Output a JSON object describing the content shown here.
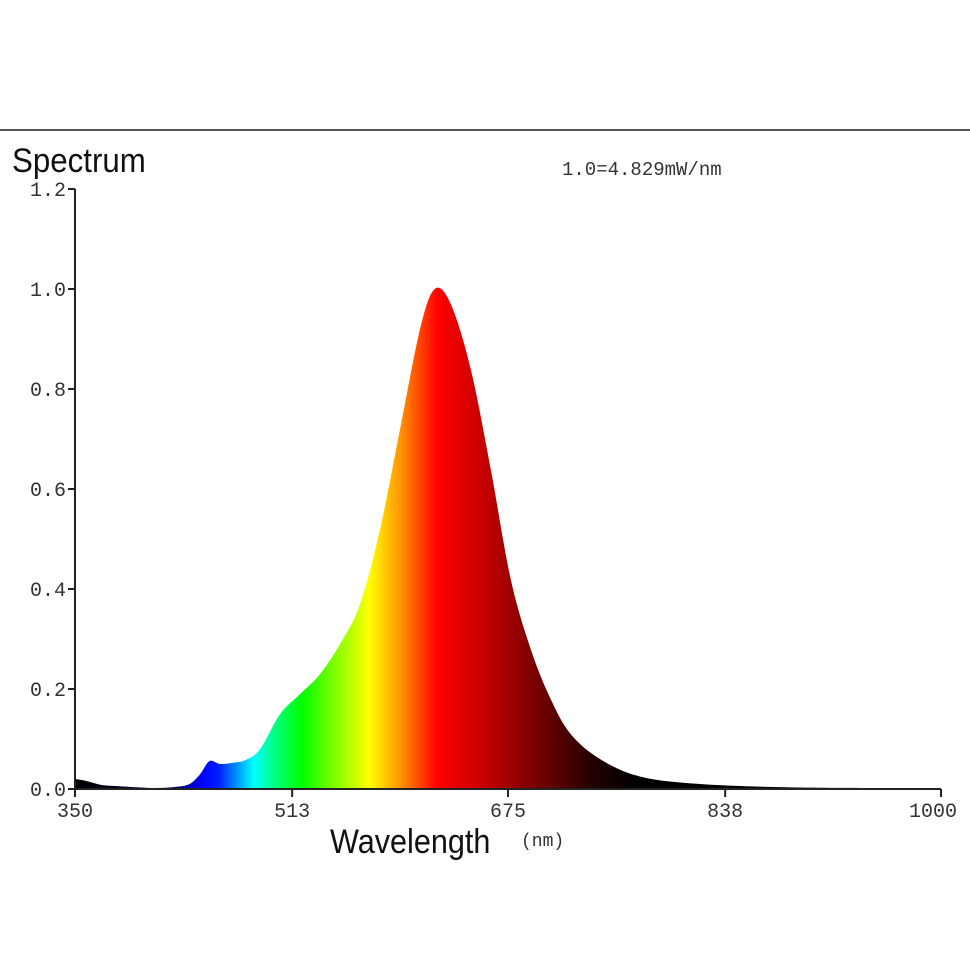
{
  "chart_data": {
    "type": "area",
    "title": "Spectrum",
    "annotation": "1.0=4.829mW/nm",
    "xlabel": "Wavelength",
    "xlabel_unit": "(nm)",
    "ylabel": "",
    "xlim": [
      350,
      1000
    ],
    "ylim": [
      0,
      1.2
    ],
    "x_ticks": [
      "350",
      "513",
      "675",
      "838",
      "1000"
    ],
    "y_ticks": [
      "0.0",
      "0.2",
      "0.4",
      "0.6",
      "0.8",
      "1.0",
      "1.2"
    ],
    "grid": false,
    "fill": "visible-spectrum gradient",
    "x": [
      350,
      355,
      360,
      370,
      380,
      400,
      410,
      425,
      436,
      444,
      451,
      459,
      470,
      478,
      489,
      504,
      519,
      534,
      549,
      564,
      579,
      594,
      609,
      620,
      632,
      647,
      662,
      677,
      692,
      707,
      722,
      744,
      774,
      819,
      894,
      1000
    ],
    "values": [
      0.02,
      0.018,
      0.015,
      0.008,
      0.006,
      0.003,
      0.002,
      0.004,
      0.01,
      0.03,
      0.056,
      0.05,
      0.053,
      0.058,
      0.08,
      0.15,
      0.19,
      0.23,
      0.29,
      0.37,
      0.52,
      0.72,
      0.92,
      1.0,
      0.97,
      0.84,
      0.64,
      0.42,
      0.28,
      0.18,
      0.11,
      0.06,
      0.025,
      0.01,
      0.003,
      0.002
    ]
  }
}
